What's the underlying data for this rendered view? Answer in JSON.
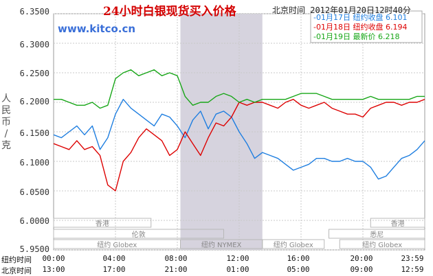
{
  "header": {
    "title": "24小时白银现货买入价格",
    "timestamp": "北京时间  2012年01月20日12时40分"
  },
  "watermark": "www.kitco.cn",
  "legend": [
    {
      "label": "-01月17日  纽约收盘",
      "value": "6.101",
      "color": "#1e7ee0"
    },
    {
      "label": "-01月18日  纽约收盘",
      "value": "6.194",
      "color": "#dd0000"
    },
    {
      "label": "-01月19日     最新价",
      "value": "6.218",
      "color": "#17a617"
    }
  ],
  "y_axis": {
    "label": "人民币/克",
    "ticks": [
      "6.3500",
      "6.3000",
      "6.2500",
      "6.2000",
      "6.1500",
      "6.1000",
      "6.0500",
      "6.0000",
      "5.9500"
    ]
  },
  "x_axis": {
    "ny_label": "纽约时间",
    "bj_label": "北京时间",
    "ny_ticks": [
      "00:00",
      "04:00",
      "08:00",
      "12:00",
      "16:00",
      "20:00",
      "23:59"
    ],
    "bj_ticks": [
      "13:00",
      "17:00",
      "21:00",
      "01:00",
      "05:00",
      "09:00",
      "12:59"
    ]
  },
  "sessions": [
    {
      "label": "香港",
      "start": 0,
      "end": 6.3
    },
    {
      "label": "香港",
      "start": 20.5,
      "end": 24
    },
    {
      "label": "伦敦",
      "start": 0,
      "end": 11
    },
    {
      "label": "悉尼",
      "start": 17.8,
      "end": 24
    },
    {
      "label": "纽约 Globex",
      "start": 0,
      "end": 8.2
    },
    {
      "label": "纽约 NYMEX",
      "start": 8.2,
      "end": 13.5
    },
    {
      "label": "纽约 Globex",
      "start": 13.5,
      "end": 17.5
    },
    {
      "label": "纽约 Globex",
      "start": 18.5,
      "end": 24
    }
  ],
  "chart_data": {
    "type": "line",
    "title": "24小时白银现货买入价格",
    "ylabel": "人民币/克",
    "xlabel": "纽约时间 / 北京时间",
    "x_unit": "hours (纽约时间)",
    "xlim": [
      0,
      24
    ],
    "ylim": [
      5.95,
      6.35
    ],
    "highlight_band": [
      8.2,
      13.5
    ],
    "grid": true,
    "series": [
      {
        "name": "01月17日 纽约收盘 6.101",
        "color": "#1e7ee0",
        "x": [
          0,
          0.5,
          1,
          1.5,
          2,
          2.5,
          3,
          3.5,
          4,
          4.5,
          5,
          5.5,
          6,
          6.5,
          7,
          7.5,
          8,
          8.5,
          9,
          9.5,
          10,
          10.5,
          11,
          11.5,
          12,
          12.5,
          13,
          13.5,
          14,
          14.5,
          15,
          15.5,
          16,
          16.5,
          17,
          17.5,
          18,
          18.5,
          19,
          19.5,
          20,
          20.5,
          21,
          21.5,
          22,
          22.5,
          23,
          23.5,
          24
        ],
        "y": [
          6.145,
          6.14,
          6.15,
          6.16,
          6.145,
          6.16,
          6.12,
          6.14,
          6.18,
          6.205,
          6.19,
          6.18,
          6.17,
          6.16,
          6.18,
          6.175,
          6.16,
          6.14,
          6.17,
          6.185,
          6.155,
          6.18,
          6.185,
          6.175,
          6.15,
          6.13,
          6.105,
          6.115,
          6.11,
          6.105,
          6.095,
          6.085,
          6.09,
          6.095,
          6.105,
          6.105,
          6.1,
          6.1,
          6.105,
          6.1,
          6.1,
          6.09,
          6.07,
          6.075,
          6.09,
          6.105,
          6.11,
          6.12,
          6.135
        ]
      },
      {
        "name": "01月18日 纽约收盘 6.194",
        "color": "#dd0000",
        "x": [
          0,
          0.5,
          1,
          1.5,
          2,
          2.5,
          3,
          3.5,
          4,
          4.5,
          5,
          5.5,
          6,
          6.5,
          7,
          7.5,
          8,
          8.5,
          9,
          9.5,
          10,
          10.5,
          11,
          11.5,
          12,
          12.5,
          13,
          13.5,
          14,
          14.5,
          15,
          15.5,
          16,
          16.5,
          17,
          17.5,
          18,
          18.5,
          19,
          19.5,
          20,
          20.5,
          21,
          21.5,
          22,
          22.5,
          23,
          23.5,
          24
        ],
        "y": [
          6.13,
          6.125,
          6.12,
          6.135,
          6.12,
          6.125,
          6.11,
          6.06,
          6.05,
          6.1,
          6.115,
          6.14,
          6.155,
          6.145,
          6.135,
          6.11,
          6.12,
          6.15,
          6.13,
          6.11,
          6.14,
          6.165,
          6.16,
          6.175,
          6.2,
          6.195,
          6.2,
          6.2,
          6.195,
          6.19,
          6.2,
          6.205,
          6.195,
          6.19,
          6.195,
          6.2,
          6.19,
          6.185,
          6.18,
          6.18,
          6.175,
          6.19,
          6.195,
          6.2,
          6.2,
          6.195,
          6.2,
          6.2,
          6.205
        ]
      },
      {
        "name": "01月19日 最新价 6.218",
        "color": "#17a617",
        "x": [
          0,
          0.5,
          1,
          1.5,
          2,
          2.5,
          3,
          3.5,
          4,
          4.5,
          5,
          5.5,
          6,
          6.5,
          7,
          7.5,
          8,
          8.5,
          9,
          9.5,
          10,
          10.5,
          11,
          11.5,
          12,
          12.5,
          13,
          13.5,
          14,
          14.5,
          15,
          15.5,
          16,
          16.5,
          17,
          17.5,
          18,
          18.5,
          19,
          19.5,
          20,
          20.5,
          21,
          21.5,
          22,
          22.5,
          23,
          23.5,
          24
        ],
        "y": [
          6.205,
          6.205,
          6.2,
          6.195,
          6.195,
          6.2,
          6.19,
          6.195,
          6.24,
          6.25,
          6.255,
          6.245,
          6.25,
          6.255,
          6.245,
          6.25,
          6.245,
          6.21,
          6.195,
          6.2,
          6.2,
          6.21,
          6.215,
          6.21,
          6.2,
          6.205,
          6.2,
          6.205,
          6.205,
          6.205,
          6.205,
          6.21,
          6.215,
          6.215,
          6.215,
          6.21,
          6.205,
          6.205,
          6.205,
          6.205,
          6.205,
          6.21,
          6.205,
          6.205,
          6.205,
          6.205,
          6.205,
          6.21,
          6.21
        ]
      }
    ]
  }
}
